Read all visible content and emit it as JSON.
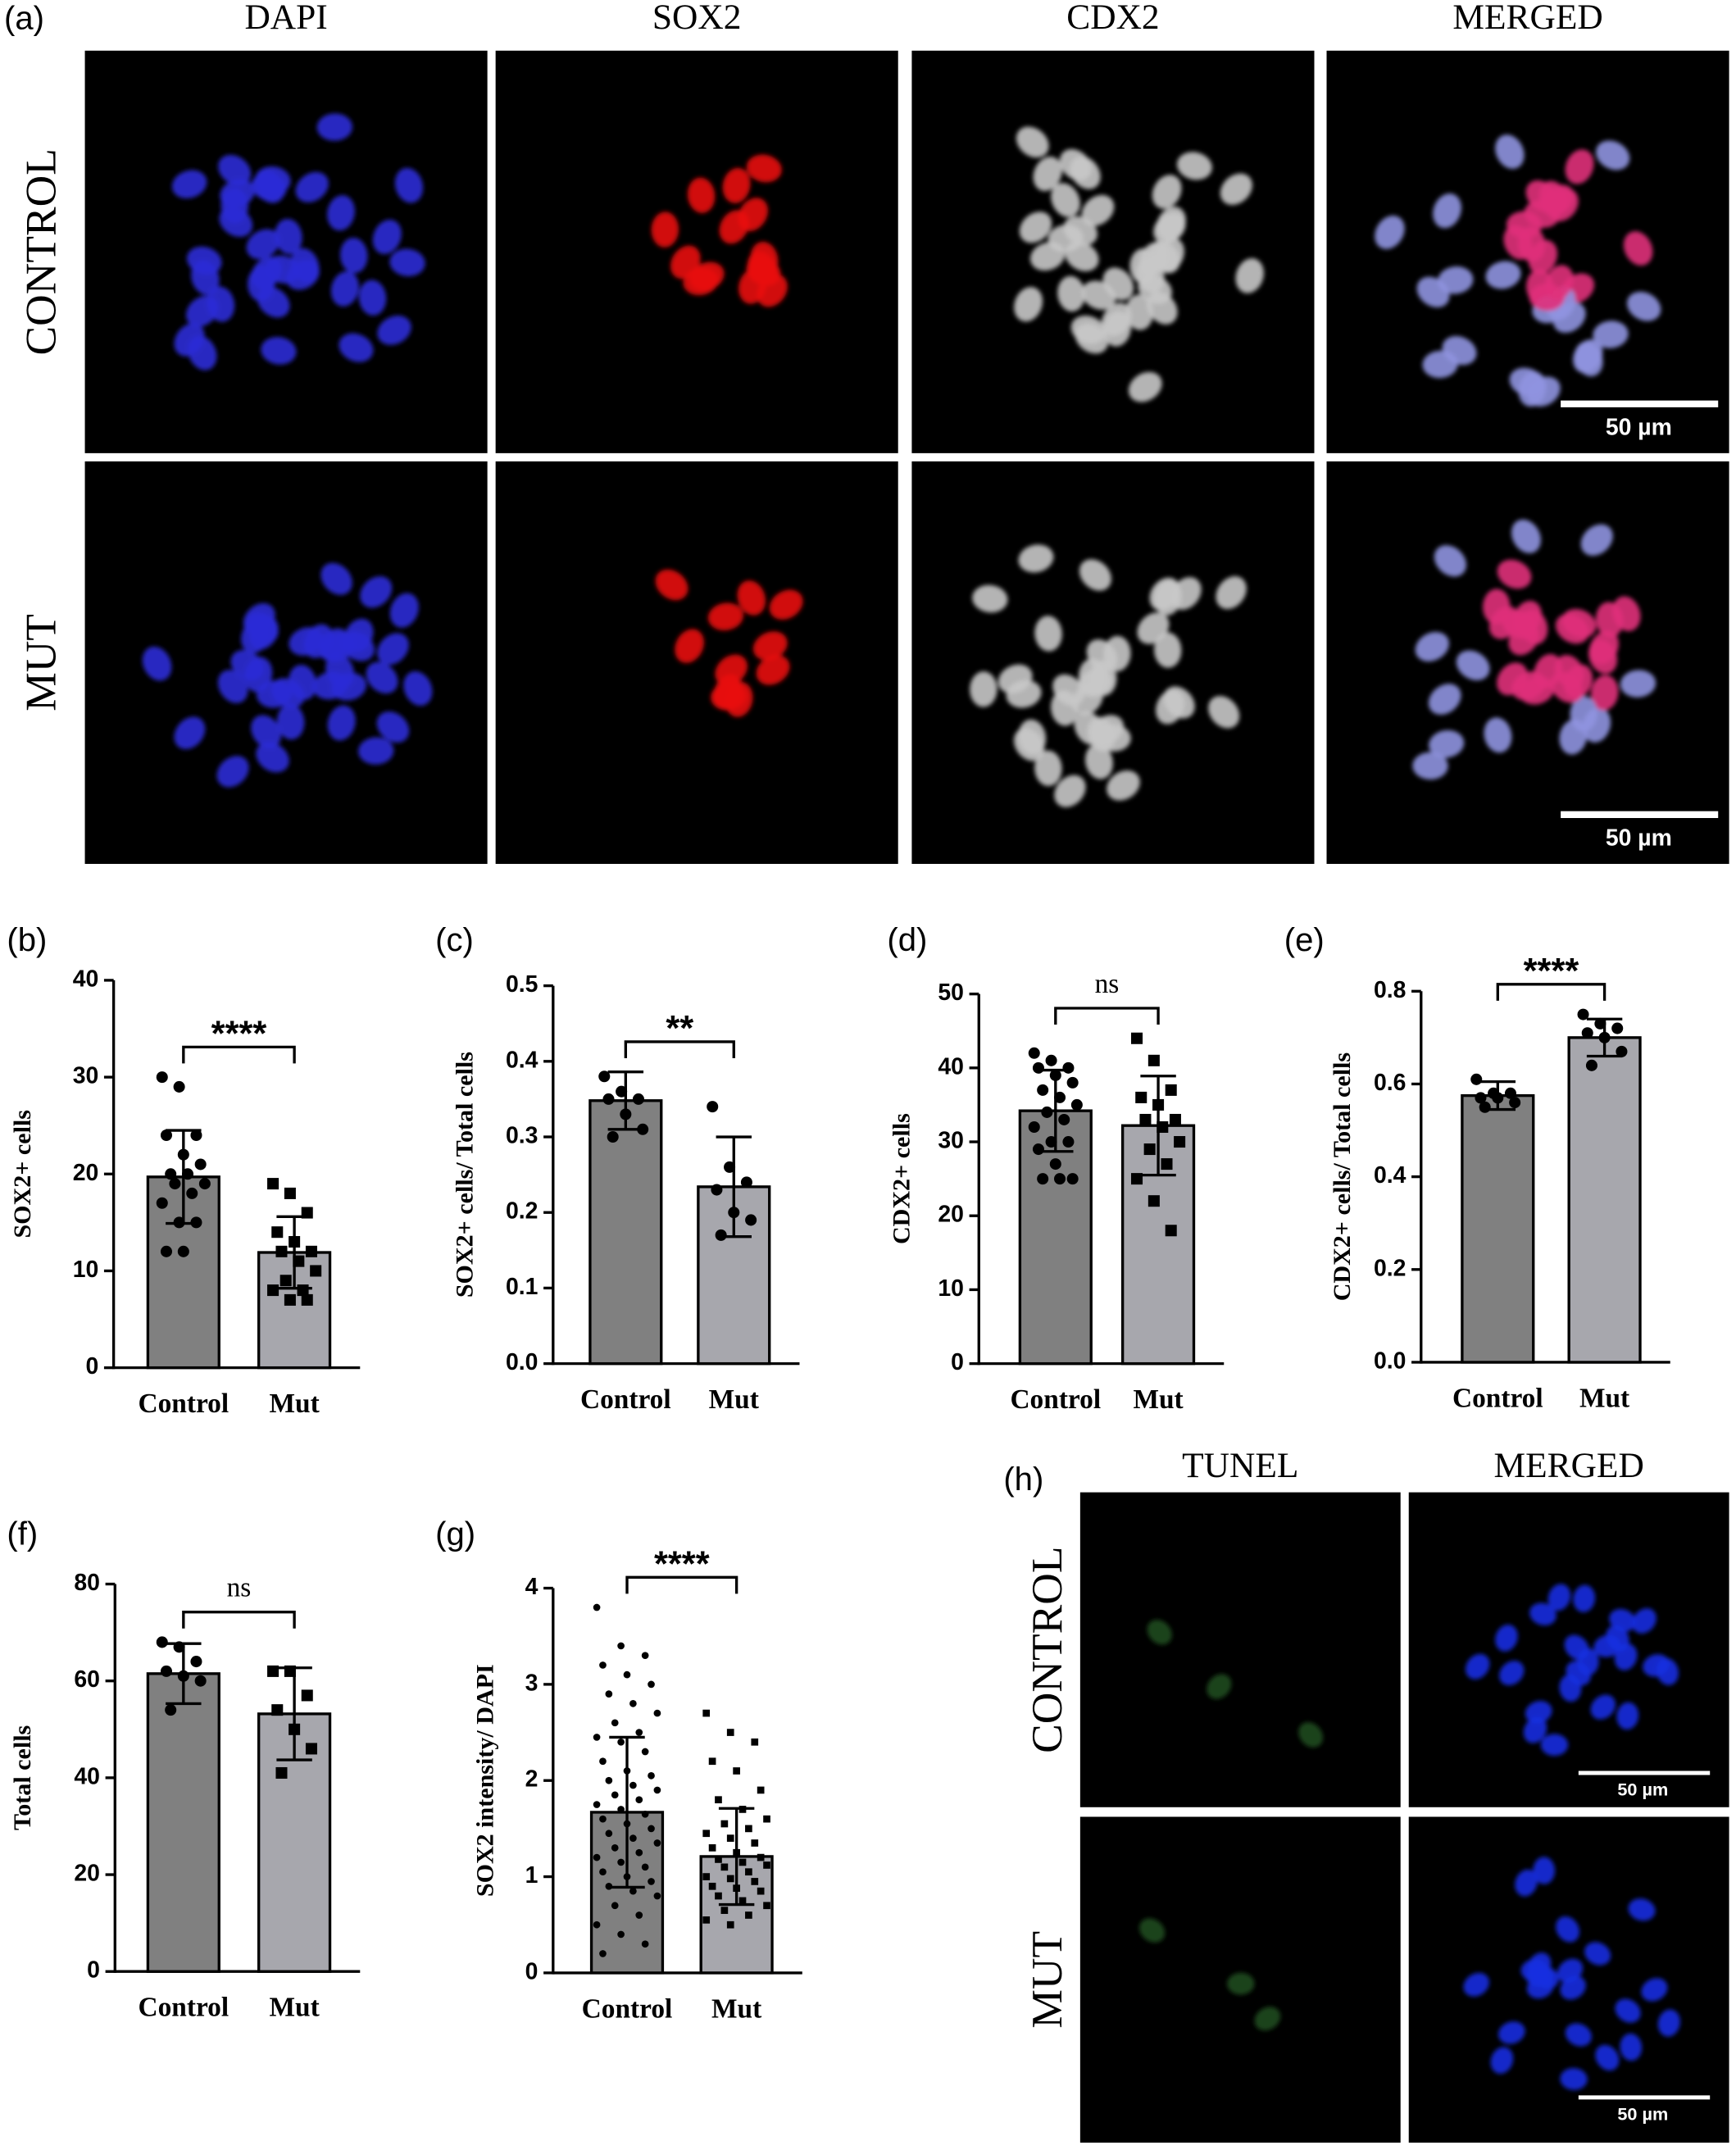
{
  "figure": {
    "panel_a": {
      "label": "(a)",
      "columns": [
        "DAPI",
        "SOX2",
        "CDX2",
        "MERGED"
      ],
      "rows": [
        "CONTROL",
        "MUT"
      ],
      "scale_bar": "50 µm"
    },
    "panel_h": {
      "label": "(h)",
      "columns": [
        "TUNEL",
        "MERGED"
      ],
      "rows": [
        "CONTROL",
        "MUT"
      ],
      "scale_bar": "50 µm"
    }
  },
  "chart_data": [
    {
      "type": "bar",
      "panel_label": "(b)",
      "y_label": "SOX2+ cells",
      "categories": [
        "Control",
        "Mut"
      ],
      "colors": [
        "#808080",
        "#a7a7ad"
      ],
      "markers": [
        "circle",
        "square"
      ],
      "values": [
        19.7,
        11.9
      ],
      "errors": [
        4.8,
        3.7
      ],
      "points": [
        [
          30,
          29,
          24,
          24,
          22,
          21,
          20,
          20,
          19,
          19,
          18,
          17,
          15,
          15,
          12,
          12
        ],
        [
          19,
          18,
          16,
          14,
          13,
          12,
          12,
          11,
          10,
          9,
          8,
          8,
          7,
          7
        ]
      ],
      "significance": "****",
      "ylim": [
        0,
        40
      ],
      "yticks": [
        0,
        10,
        20,
        30,
        40
      ]
    },
    {
      "type": "bar",
      "panel_label": "(c)",
      "y_label": "SOX2+ cells/ Total cells",
      "categories": [
        "Control",
        "Mut"
      ],
      "colors": [
        "#808080",
        "#a7a7ad"
      ],
      "markers": [
        "circle",
        "circle"
      ],
      "values": [
        0.348,
        0.234
      ],
      "errors": [
        0.038,
        0.066
      ],
      "points": [
        [
          0.38,
          0.36,
          0.35,
          0.35,
          0.33,
          0.31,
          0.3
        ],
        [
          0.34,
          0.26,
          0.24,
          0.23,
          0.2,
          0.19,
          0.17
        ]
      ],
      "significance": "**",
      "ylim": [
        0,
        0.5
      ],
      "yticks": [
        {
          "value": 0,
          "label": "0.0"
        },
        0.1,
        0.2,
        0.3,
        0.4,
        0.5
      ]
    },
    {
      "type": "bar",
      "panel_label": "(d)",
      "y_label": "CDX2+ cells",
      "categories": [
        "Control",
        "Mut"
      ],
      "colors": [
        "#808080",
        "#a7a7ad"
      ],
      "markers": [
        "circle",
        "square"
      ],
      "values": [
        34.2,
        32.2
      ],
      "errors": [
        5.5,
        6.7
      ],
      "points": [
        [
          42,
          41,
          40,
          40,
          39,
          38,
          37,
          36,
          35,
          34,
          33,
          32,
          30,
          30,
          29,
          27,
          25,
          25,
          25
        ],
        [
          44,
          41,
          37,
          36,
          35,
          33,
          33,
          32,
          30,
          29,
          27,
          25,
          22,
          18
        ]
      ],
      "significance": "ns",
      "ylim": [
        0,
        50
      ],
      "yticks": [
        0,
        10,
        20,
        30,
        40,
        50
      ]
    },
    {
      "type": "bar",
      "panel_label": "(e)",
      "y_label": "CDX2+ cells/ Total cells",
      "categories": [
        "Control",
        "Mut"
      ],
      "colors": [
        "#808080",
        "#a7a7ad"
      ],
      "markers": [
        "circle",
        "circle"
      ],
      "values": [
        0.575,
        0.7
      ],
      "errors": [
        0.03,
        0.04
      ],
      "points": [
        [
          0.61,
          0.58,
          0.58,
          0.57,
          0.57,
          0.56,
          0.55
        ],
        [
          0.75,
          0.73,
          0.72,
          0.71,
          0.7,
          0.67,
          0.64
        ]
      ],
      "significance": "****",
      "ylim": [
        0,
        0.8
      ],
      "yticks": [
        {
          "value": 0,
          "label": "0.0"
        },
        0.2,
        0.4,
        0.6,
        0.8
      ]
    },
    {
      "type": "bar",
      "panel_label": "(f)",
      "y_label": "Total cells",
      "categories": [
        "Control",
        "Mut"
      ],
      "colors": [
        "#808080",
        "#a7a7ad"
      ],
      "markers": [
        "circle",
        "square"
      ],
      "values": [
        61.5,
        53.2
      ],
      "errors": [
        6.2,
        9.5
      ],
      "points": [
        [
          68,
          67,
          64,
          62,
          61,
          60,
          54
        ],
        [
          62,
          62,
          57,
          54,
          50,
          46,
          41
        ]
      ],
      "significance": "ns",
      "ylim": [
        0,
        80
      ],
      "yticks": [
        0,
        20,
        40,
        60,
        80
      ]
    },
    {
      "type": "bar",
      "panel_label": "(g)",
      "y_label": "SOX2 intensity/ DAPI",
      "categories": [
        "Control",
        "Mut"
      ],
      "colors": [
        "#808080",
        "#a7a7ad"
      ],
      "markers": [
        "circle",
        "square"
      ],
      "values": [
        1.67,
        1.21
      ],
      "errors": [
        0.78,
        0.5
      ],
      "points": [
        [
          3.8,
          3.4,
          3.3,
          3.2,
          3.1,
          3.0,
          2.9,
          2.8,
          2.7,
          2.6,
          2.5,
          2.45,
          2.4,
          2.3,
          2.2,
          2.1,
          2.05,
          2.0,
          1.95,
          1.9,
          1.85,
          1.8,
          1.75,
          1.7,
          1.65,
          1.6,
          1.55,
          1.5,
          1.45,
          1.4,
          1.35,
          1.3,
          1.25,
          1.2,
          1.15,
          1.1,
          1.05,
          1.0,
          0.95,
          0.9,
          0.85,
          0.8,
          0.7,
          0.6,
          0.5,
          0.4,
          0.3,
          0.2
        ],
        [
          2.7,
          2.5,
          2.4,
          2.2,
          2.1,
          1.9,
          1.8,
          1.7,
          1.6,
          1.55,
          1.5,
          1.45,
          1.4,
          1.35,
          1.3,
          1.25,
          1.2,
          1.18,
          1.15,
          1.12,
          1.1,
          1.05,
          1.0,
          0.98,
          0.95,
          0.9,
          0.88,
          0.85,
          0.8,
          0.75,
          0.7,
          0.65,
          0.6,
          0.55,
          0.5
        ]
      ],
      "significance": "****",
      "ylim": [
        0,
        4
      ],
      "yticks": [
        0,
        1,
        2,
        3,
        4
      ]
    }
  ]
}
